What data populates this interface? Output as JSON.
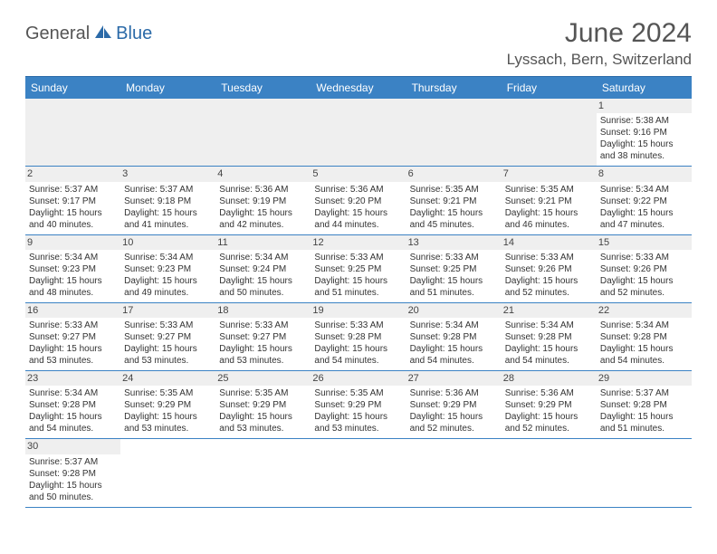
{
  "logo": {
    "part1": "General",
    "part2": "Blue"
  },
  "title": "June 2024",
  "location": "Lyssach, Bern, Switzerland",
  "daysOfWeek": [
    "Sunday",
    "Monday",
    "Tuesday",
    "Wednesday",
    "Thursday",
    "Friday",
    "Saturday"
  ],
  "colors": {
    "header_bg": "#3b82c4",
    "header_text": "#ffffff",
    "border": "#3b82c4",
    "daynum_bg": "#efefef",
    "title_text": "#555555",
    "logo_blue": "#2b6aa8"
  },
  "weeks": [
    [
      null,
      null,
      null,
      null,
      null,
      null,
      {
        "n": "1",
        "sr": "Sunrise: 5:38 AM",
        "ss": "Sunset: 9:16 PM",
        "dl": "Daylight: 15 hours and 38 minutes."
      }
    ],
    [
      {
        "n": "2",
        "sr": "Sunrise: 5:37 AM",
        "ss": "Sunset: 9:17 PM",
        "dl": "Daylight: 15 hours and 40 minutes."
      },
      {
        "n": "3",
        "sr": "Sunrise: 5:37 AM",
        "ss": "Sunset: 9:18 PM",
        "dl": "Daylight: 15 hours and 41 minutes."
      },
      {
        "n": "4",
        "sr": "Sunrise: 5:36 AM",
        "ss": "Sunset: 9:19 PM",
        "dl": "Daylight: 15 hours and 42 minutes."
      },
      {
        "n": "5",
        "sr": "Sunrise: 5:36 AM",
        "ss": "Sunset: 9:20 PM",
        "dl": "Daylight: 15 hours and 44 minutes."
      },
      {
        "n": "6",
        "sr": "Sunrise: 5:35 AM",
        "ss": "Sunset: 9:21 PM",
        "dl": "Daylight: 15 hours and 45 minutes."
      },
      {
        "n": "7",
        "sr": "Sunrise: 5:35 AM",
        "ss": "Sunset: 9:21 PM",
        "dl": "Daylight: 15 hours and 46 minutes."
      },
      {
        "n": "8",
        "sr": "Sunrise: 5:34 AM",
        "ss": "Sunset: 9:22 PM",
        "dl": "Daylight: 15 hours and 47 minutes."
      }
    ],
    [
      {
        "n": "9",
        "sr": "Sunrise: 5:34 AM",
        "ss": "Sunset: 9:23 PM",
        "dl": "Daylight: 15 hours and 48 minutes."
      },
      {
        "n": "10",
        "sr": "Sunrise: 5:34 AM",
        "ss": "Sunset: 9:23 PM",
        "dl": "Daylight: 15 hours and 49 minutes."
      },
      {
        "n": "11",
        "sr": "Sunrise: 5:34 AM",
        "ss": "Sunset: 9:24 PM",
        "dl": "Daylight: 15 hours and 50 minutes."
      },
      {
        "n": "12",
        "sr": "Sunrise: 5:33 AM",
        "ss": "Sunset: 9:25 PM",
        "dl": "Daylight: 15 hours and 51 minutes."
      },
      {
        "n": "13",
        "sr": "Sunrise: 5:33 AM",
        "ss": "Sunset: 9:25 PM",
        "dl": "Daylight: 15 hours and 51 minutes."
      },
      {
        "n": "14",
        "sr": "Sunrise: 5:33 AM",
        "ss": "Sunset: 9:26 PM",
        "dl": "Daylight: 15 hours and 52 minutes."
      },
      {
        "n": "15",
        "sr": "Sunrise: 5:33 AM",
        "ss": "Sunset: 9:26 PM",
        "dl": "Daylight: 15 hours and 52 minutes."
      }
    ],
    [
      {
        "n": "16",
        "sr": "Sunrise: 5:33 AM",
        "ss": "Sunset: 9:27 PM",
        "dl": "Daylight: 15 hours and 53 minutes."
      },
      {
        "n": "17",
        "sr": "Sunrise: 5:33 AM",
        "ss": "Sunset: 9:27 PM",
        "dl": "Daylight: 15 hours and 53 minutes."
      },
      {
        "n": "18",
        "sr": "Sunrise: 5:33 AM",
        "ss": "Sunset: 9:27 PM",
        "dl": "Daylight: 15 hours and 53 minutes."
      },
      {
        "n": "19",
        "sr": "Sunrise: 5:33 AM",
        "ss": "Sunset: 9:28 PM",
        "dl": "Daylight: 15 hours and 54 minutes."
      },
      {
        "n": "20",
        "sr": "Sunrise: 5:34 AM",
        "ss": "Sunset: 9:28 PM",
        "dl": "Daylight: 15 hours and 54 minutes."
      },
      {
        "n": "21",
        "sr": "Sunrise: 5:34 AM",
        "ss": "Sunset: 9:28 PM",
        "dl": "Daylight: 15 hours and 54 minutes."
      },
      {
        "n": "22",
        "sr": "Sunrise: 5:34 AM",
        "ss": "Sunset: 9:28 PM",
        "dl": "Daylight: 15 hours and 54 minutes."
      }
    ],
    [
      {
        "n": "23",
        "sr": "Sunrise: 5:34 AM",
        "ss": "Sunset: 9:28 PM",
        "dl": "Daylight: 15 hours and 54 minutes."
      },
      {
        "n": "24",
        "sr": "Sunrise: 5:35 AM",
        "ss": "Sunset: 9:29 PM",
        "dl": "Daylight: 15 hours and 53 minutes."
      },
      {
        "n": "25",
        "sr": "Sunrise: 5:35 AM",
        "ss": "Sunset: 9:29 PM",
        "dl": "Daylight: 15 hours and 53 minutes."
      },
      {
        "n": "26",
        "sr": "Sunrise: 5:35 AM",
        "ss": "Sunset: 9:29 PM",
        "dl": "Daylight: 15 hours and 53 minutes."
      },
      {
        "n": "27",
        "sr": "Sunrise: 5:36 AM",
        "ss": "Sunset: 9:29 PM",
        "dl": "Daylight: 15 hours and 52 minutes."
      },
      {
        "n": "28",
        "sr": "Sunrise: 5:36 AM",
        "ss": "Sunset: 9:29 PM",
        "dl": "Daylight: 15 hours and 52 minutes."
      },
      {
        "n": "29",
        "sr": "Sunrise: 5:37 AM",
        "ss": "Sunset: 9:28 PM",
        "dl": "Daylight: 15 hours and 51 minutes."
      }
    ],
    [
      {
        "n": "30",
        "sr": "Sunrise: 5:37 AM",
        "ss": "Sunset: 9:28 PM",
        "dl": "Daylight: 15 hours and 50 minutes."
      },
      null,
      null,
      null,
      null,
      null,
      null
    ]
  ]
}
